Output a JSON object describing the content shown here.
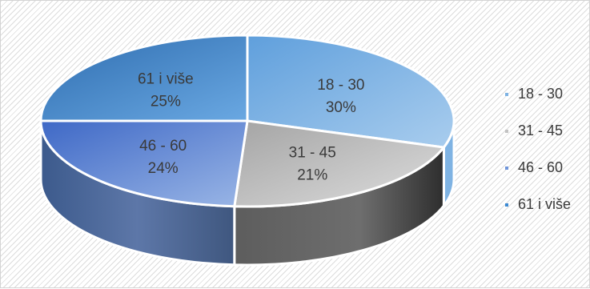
{
  "chart_data": {
    "type": "pie",
    "style": "3d",
    "title": "",
    "categories": [
      "18 - 30",
      "31 - 45",
      "46 - 60",
      "61 i više"
    ],
    "values": [
      30,
      21,
      24,
      25
    ],
    "value_labels": [
      "30%",
      "21%",
      "24%",
      "25%"
    ],
    "unit": "%",
    "legend_position": "right",
    "colors": [
      "#7fb3e3",
      "#c3c3c3",
      "#6f95d9",
      "#3d8ad3"
    ]
  }
}
